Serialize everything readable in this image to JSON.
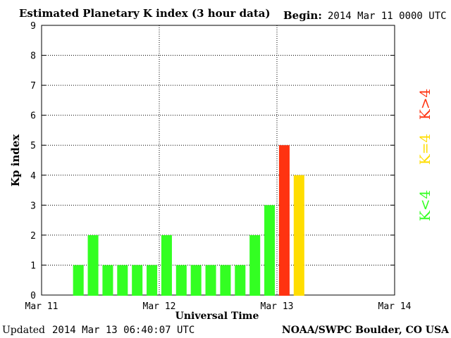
{
  "chart_data": {
    "type": "bar",
    "title": "Estimated Planetary K index (3 hour data)",
    "begin_label": "Begin:",
    "begin_value": "2014 Mar 11 0000 UTC",
    "ylabel": "Kp index",
    "xlabel": "Universal Time",
    "ylim": [
      0,
      9
    ],
    "yticks": [
      "0",
      "1",
      "2",
      "3",
      "4",
      "5",
      "6",
      "7",
      "8",
      "9"
    ],
    "xlim_hours": [
      0,
      72
    ],
    "xticks": [
      {
        "hour": 0,
        "label": "Mar 11"
      },
      {
        "hour": 24,
        "label": "Mar 12"
      },
      {
        "hour": 48,
        "label": "Mar 13"
      },
      {
        "hour": 72,
        "label": "Mar 14"
      }
    ],
    "grid": true,
    "bars": [
      {
        "hour": 6,
        "value": 1,
        "level": "low"
      },
      {
        "hour": 9,
        "value": 2,
        "level": "low"
      },
      {
        "hour": 12,
        "value": 1,
        "level": "low"
      },
      {
        "hour": 15,
        "value": 1,
        "level": "low"
      },
      {
        "hour": 18,
        "value": 1,
        "level": "low"
      },
      {
        "hour": 21,
        "value": 1,
        "level": "low"
      },
      {
        "hour": 24,
        "value": 2,
        "level": "low"
      },
      {
        "hour": 27,
        "value": 1,
        "level": "low"
      },
      {
        "hour": 30,
        "value": 1,
        "level": "low"
      },
      {
        "hour": 33,
        "value": 1,
        "level": "low"
      },
      {
        "hour": 36,
        "value": 1,
        "level": "low"
      },
      {
        "hour": 39,
        "value": 1,
        "level": "low"
      },
      {
        "hour": 42,
        "value": 2,
        "level": "low"
      },
      {
        "hour": 45,
        "value": 3,
        "level": "low"
      },
      {
        "hour": 48,
        "value": 5,
        "level": "high"
      },
      {
        "hour": 51,
        "value": 4,
        "level": "equal"
      }
    ],
    "colors": {
      "low": "#33ff22",
      "equal": "#ffdd00",
      "high": "#ff3311"
    },
    "legend": [
      {
        "text": "K<4",
        "level": "low"
      },
      {
        "text": "K=4",
        "level": "equal"
      },
      {
        "text": "K>4",
        "level": "high"
      }
    ],
    "legend_position": "right"
  },
  "footer": {
    "updated_label": "Updated",
    "updated_value": "2014 Mar 13 06:40:07 UTC",
    "source": "NOAA/SWPC Boulder, CO USA"
  }
}
